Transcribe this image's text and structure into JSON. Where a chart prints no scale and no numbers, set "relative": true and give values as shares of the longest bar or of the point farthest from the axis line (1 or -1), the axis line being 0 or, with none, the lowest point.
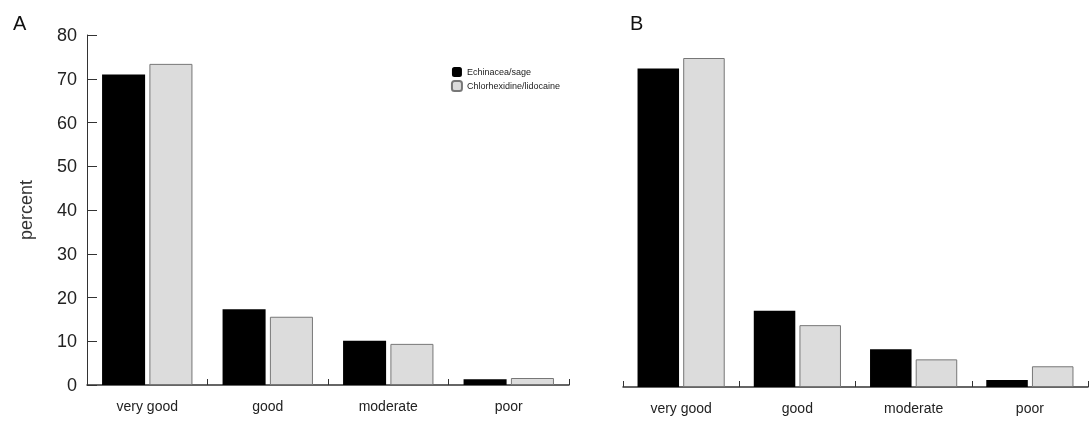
{
  "chart_data": [
    {
      "type": "bar",
      "title": "A",
      "ylabel": "percent",
      "categories": [
        "very good",
        "good",
        "moderate",
        "poor"
      ],
      "series": [
        {
          "name": "Echinacea/sage",
          "color": "#000000",
          "values": [
            71,
            17.3,
            10.1,
            1.3
          ]
        },
        {
          "name": "Chlorhexidine/lidocaine",
          "color": "#dcdcdc",
          "values": [
            73.4,
            15.6,
            9.4,
            1.6
          ]
        }
      ],
      "ylim": [
        0,
        80
      ],
      "yticks": [
        0,
        10,
        20,
        30,
        40,
        50,
        60,
        70,
        80
      ],
      "legend": "top right"
    },
    {
      "type": "bar",
      "title": "B",
      "relative": true,
      "categories": [
        "very good",
        "good",
        "moderate",
        "poor"
      ],
      "series": [
        {
          "color": "#000000",
          "values": [
            0.968,
            0.232,
            0.115,
            0.021
          ]
        },
        {
          "color": "#dcdcdc",
          "values": [
            1,
            0.188,
            0.084,
            0.063
          ]
        }
      ]
    }
  ]
}
